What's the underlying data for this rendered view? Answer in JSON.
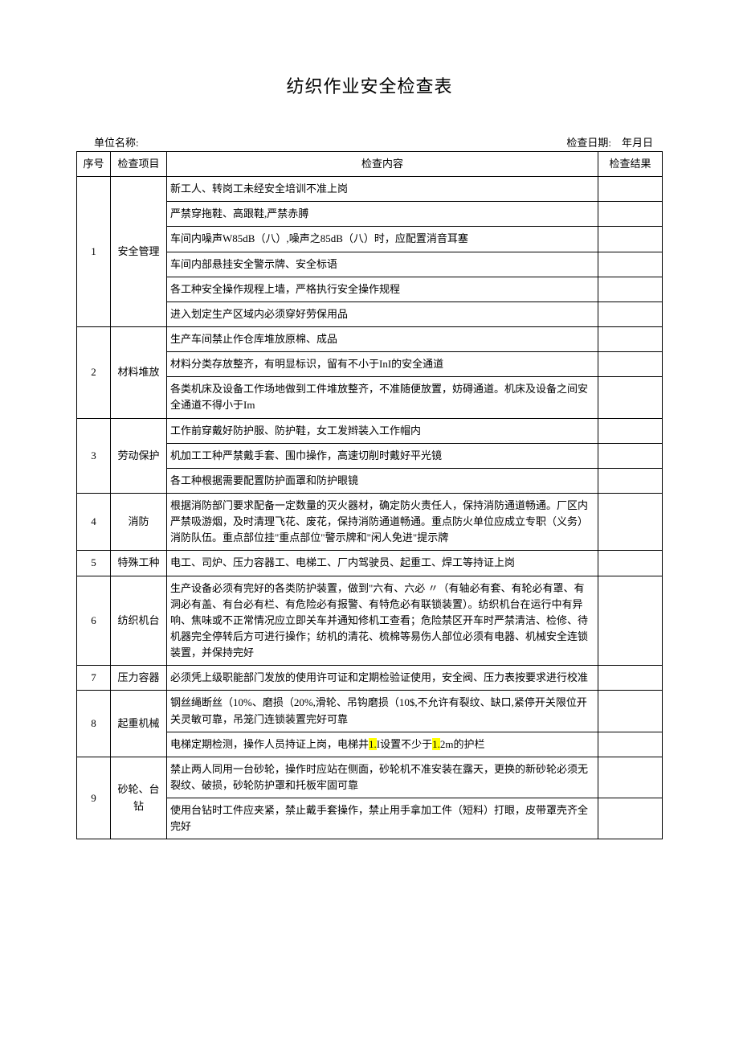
{
  "title": "纺织作业安全检查表",
  "meta": {
    "unit_label": "单位名称:",
    "date_label": "检查日期:",
    "date_value": "年月日"
  },
  "headers": {
    "seq": "序号",
    "item": "检查项目",
    "content": "检查内容",
    "result": "检查结果"
  },
  "rows": [
    {
      "seq": "1",
      "item": "安全管理",
      "contents": [
        "新工人、转岗工未经安全培训不准上岗",
        "严禁穿拖鞋、高跟鞋,严禁赤膊",
        "车间内噪声W85dB（八）,噪声之85dB（八）时，应配置消音耳塞",
        "车间内部悬挂安全警示牌、安全标语",
        "各工种安全操作规程上墙，严格执行安全操作规程",
        "进入划定生产区域内必须穿好劳保用品"
      ]
    },
    {
      "seq": "2",
      "item": "材料堆放",
      "contents": [
        "生产车间禁止作仓库堆放原棉、成品",
        "材料分类存放整齐，有明显标识，留有不小于InI的安全通道",
        "各类机床及设备工作场地做到工件堆放整齐，不准随便放置，妨碍通道。机床及设备之间安全通道不得小于Im"
      ]
    },
    {
      "seq": "3",
      "item": "劳动保护",
      "contents": [
        "工作前穿戴好防护服、防护鞋，女工发辫装入工作帽内",
        "机加工工种严禁戴手套、围巾操作，高速切削时戴好平光镜",
        "各工种根据需要配置防护面罩和防护眼镜"
      ]
    },
    {
      "seq": "4",
      "item": "消防",
      "contents": [
        "根据消防部门要求配备一定数量的灭火器材，确定防火责任人，保持消防通道畅通。厂区内严禁吸游烟，及时清理飞花、废花，保持消防通道畅通。重点防火单位应成立专职（义务）消防队伍。重点部位挂\"重点部位\"警示牌和\"闲人免进\"提示牌"
      ]
    },
    {
      "seq": "5",
      "item": "特殊工种",
      "contents": [
        "电工、司炉、压力容器工、电梯工、厂内驾驶员、起重工、焊工等持证上岗"
      ]
    },
    {
      "seq": "6",
      "item": "纺织机台",
      "contents": [
        "生产设备必须有完好的各类防护装置，做到\"六有、六必 〃（有轴必有套、有轮必有罩、有洞必有盖、有台必有栏、有危险必有报警、有特危必有联锁装置）。纺织机台在运行中有异响、焦味或不正常情况应立即关车并通知修机工查看；危险禁区开车时严禁清洁、检修、待机器完全停转后方可进行操作；纺机的清花、梳棉等易伤人部位必须有电器、机械安全连锁装置，并保持完好"
      ]
    },
    {
      "seq": "7",
      "item": "压力容器",
      "contents": [
        "必须凭上级职能部门发放的使用许可证和定期检验证使用，安全阀、压力表按要求进行校准"
      ]
    },
    {
      "seq": "8",
      "item": "起重机械",
      "contents": [
        "钢丝绳断丝（10%、磨损（20%,滑轮、吊钩磨损（10$,不允许有裂纹、缺口,紧停开关限位开关灵敏可靠，吊笼门连锁装置完好可靠",
        {
          "parts": [
            {
              "text": "电梯定期检测，操作人员持证上岗，电梯井"
            },
            {
              "text": "1.",
              "hl": true
            },
            {
              "text": "I设置不少于"
            },
            {
              "text": "1.",
              "hl": true
            },
            {
              "text": "2m的护栏"
            }
          ]
        }
      ]
    },
    {
      "seq": "9",
      "item": "砂轮、台钻",
      "contents": [
        "禁止两人同用一台砂轮，操作时应站在侧面，砂轮机不准安装在露天，更换的新砂轮必须无裂纹、破损，砂轮防护罩和托板牢固可靠",
        "使用台钻时工件应夹紧，禁止戴手套操作，禁止用手拿加工件（短料）打眼，皮带罩壳齐全完好"
      ]
    }
  ],
  "colors": {
    "background": "#ffffff",
    "text": "#000000",
    "border": "#000000",
    "highlight": "#ffff00"
  }
}
